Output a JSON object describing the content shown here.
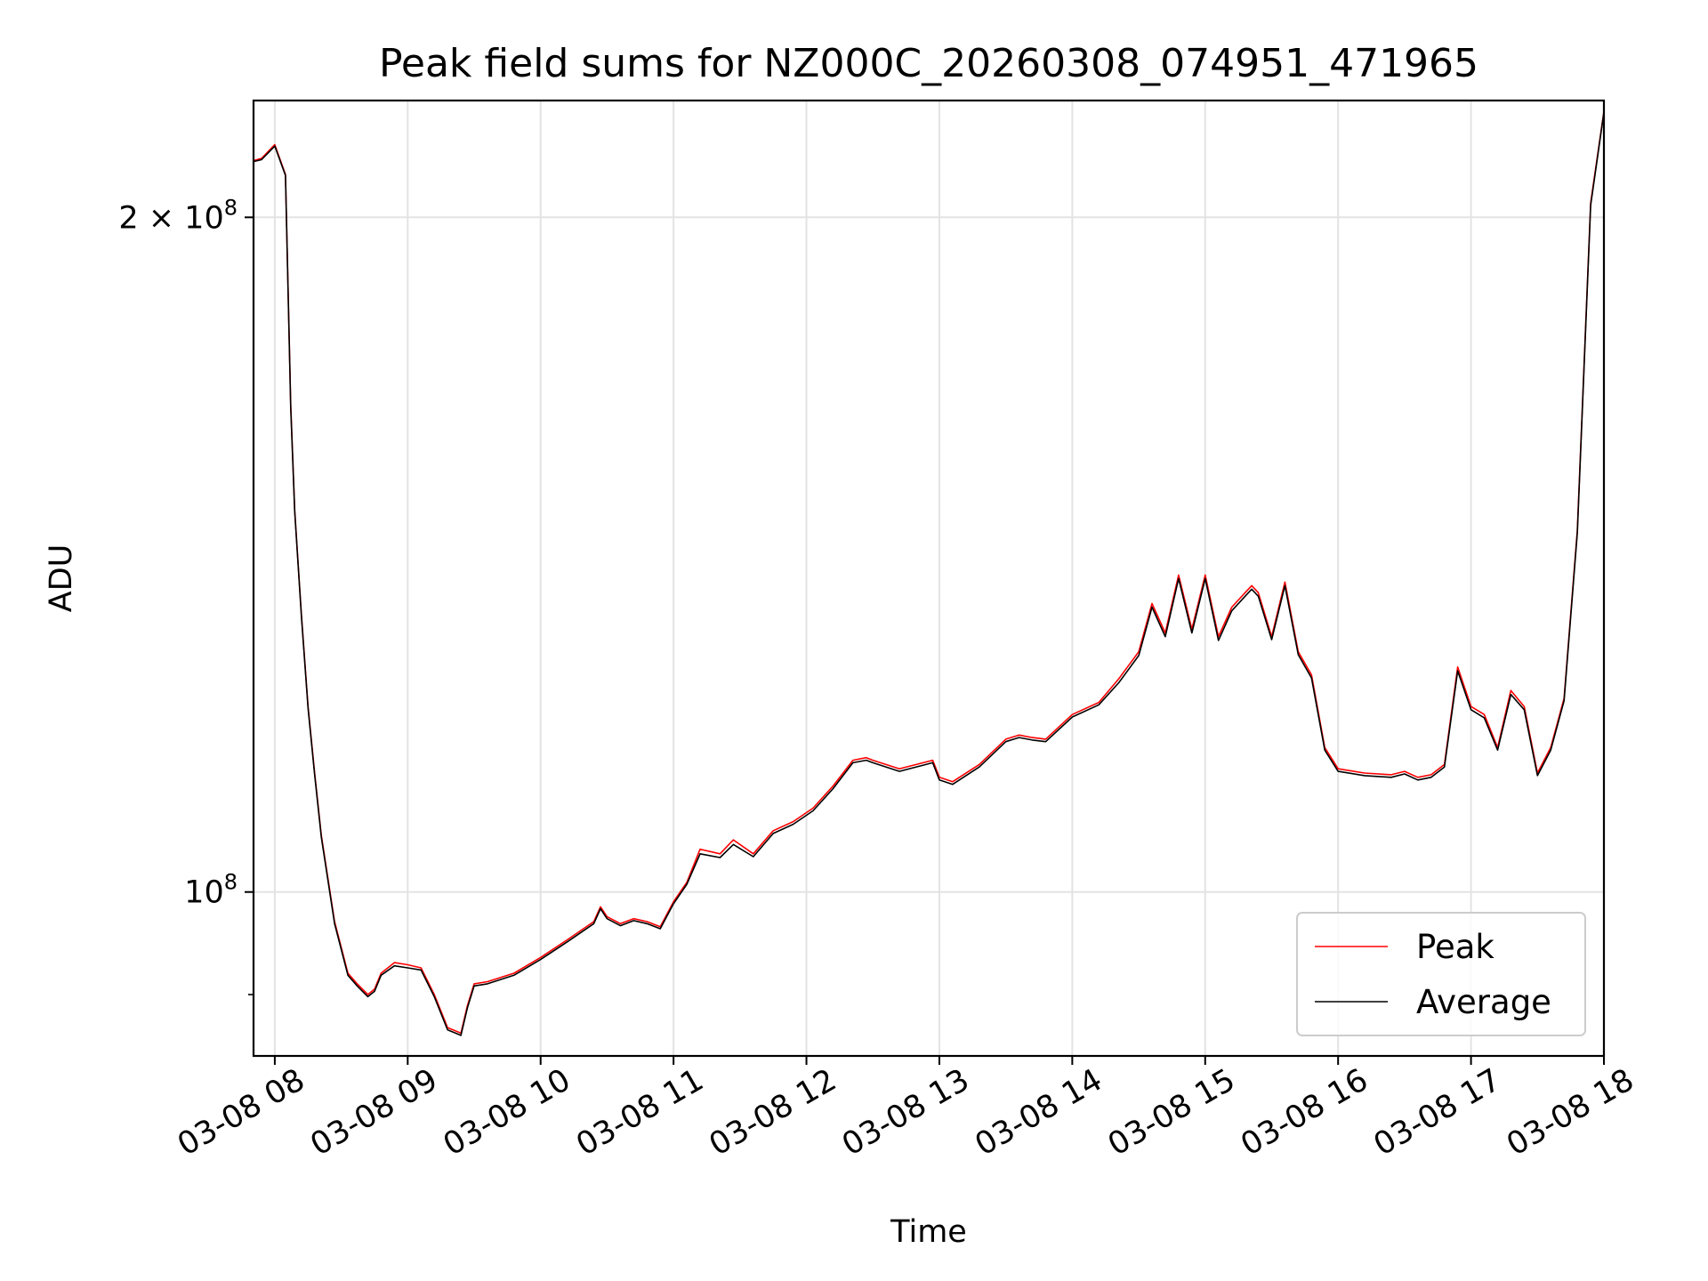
{
  "chart_data": {
    "type": "line",
    "title": "Peak field sums for NZ000C_20260308_074951_471965",
    "xlabel": "Time",
    "ylabel": "ADU",
    "yscale": "log",
    "xlim": [
      7.84,
      18.0
    ],
    "ylim": [
      84500000,
      225500000
    ],
    "grid": true,
    "legend_position": "bottom-right",
    "x_ticks": [
      {
        "value": 8,
        "label": "03-08 08"
      },
      {
        "value": 9,
        "label": "03-08 09"
      },
      {
        "value": 10,
        "label": "03-08 10"
      },
      {
        "value": 11,
        "label": "03-08 11"
      },
      {
        "value": 12,
        "label": "03-08 12"
      },
      {
        "value": 13,
        "label": "03-08 13"
      },
      {
        "value": 14,
        "label": "03-08 14"
      },
      {
        "value": 15,
        "label": "03-08 15"
      },
      {
        "value": 16,
        "label": "03-08 16"
      },
      {
        "value": 17,
        "label": "03-08 17"
      },
      {
        "value": 18,
        "label": "03-08 18"
      }
    ],
    "y_ticks": [
      {
        "value": 100000000,
        "mantissa": "",
        "base": "10",
        "exponent": "8"
      },
      {
        "value": 200000000,
        "mantissa": "2 × ",
        "base": "10",
        "exponent": "8"
      }
    ],
    "series": [
      {
        "name": "Peak",
        "color": "#ff0000",
        "x": [
          7.84,
          7.9,
          8.0,
          8.08,
          8.12,
          8.15,
          8.2,
          8.25,
          8.3,
          8.35,
          8.45,
          8.55,
          8.62,
          8.7,
          8.75,
          8.8,
          8.9,
          9.0,
          9.1,
          9.2,
          9.3,
          9.4,
          9.45,
          9.5,
          9.6,
          9.8,
          10.0,
          10.2,
          10.4,
          10.45,
          10.5,
          10.6,
          10.7,
          10.8,
          10.9,
          11.0,
          11.1,
          11.2,
          11.35,
          11.45,
          11.6,
          11.75,
          11.9,
          12.05,
          12.2,
          12.35,
          12.45,
          12.5,
          12.7,
          12.95,
          13.0,
          13.1,
          13.3,
          13.5,
          13.6,
          13.7,
          13.8,
          14.0,
          14.2,
          14.35,
          14.5,
          14.6,
          14.7,
          14.8,
          14.9,
          15.0,
          15.1,
          15.2,
          15.3,
          15.35,
          15.4,
          15.5,
          15.6,
          15.7,
          15.8,
          15.9,
          16.0,
          16.2,
          16.4,
          16.5,
          16.6,
          16.7,
          16.8,
          16.9,
          17.0,
          17.1,
          17.2,
          17.3,
          17.4,
          17.5,
          17.6,
          17.7,
          17.8,
          17.9,
          18.0
        ],
        "values": [
          212000000,
          212500000,
          215500000,
          209000000,
          165000000,
          148000000,
          133000000,
          121000000,
          113000000,
          106000000,
          97000000,
          92000000,
          91000000,
          90000000,
          90500000,
          92000000,
          93000000,
          92800000,
          92500000,
          90000000,
          87000000,
          86500000,
          89000000,
          91000000,
          91200000,
          92000000,
          93500000,
          95200000,
          97000000,
          98500000,
          97500000,
          96800000,
          97300000,
          97000000,
          96500000,
          99000000,
          101000000,
          104500000,
          104000000,
          105500000,
          104000000,
          106500000,
          107500000,
          109000000,
          111500000,
          114500000,
          114800000,
          114500000,
          113500000,
          114500000,
          112500000,
          112000000,
          114000000,
          117000000,
          117500000,
          117200000,
          117000000,
          120000000,
          121500000,
          124500000,
          128000000,
          134500000,
          130500000,
          138500000,
          131000000,
          138500000,
          130000000,
          134000000,
          136000000,
          137000000,
          136000000,
          130000000,
          137500000,
          128000000,
          125000000,
          116000000,
          113500000,
          113000000,
          112800000,
          113200000,
          112500000,
          112800000,
          114000000,
          126000000,
          121000000,
          120000000,
          116000000,
          123000000,
          121000000,
          113000000,
          116000000,
          122000000,
          145000000,
          203000000,
          223000000
        ]
      },
      {
        "name": "Average",
        "color": "#000000",
        "x": [
          7.84,
          7.9,
          8.0,
          8.08,
          8.12,
          8.15,
          8.2,
          8.25,
          8.3,
          8.35,
          8.45,
          8.55,
          8.62,
          8.7,
          8.75,
          8.8,
          8.9,
          9.0,
          9.1,
          9.2,
          9.3,
          9.4,
          9.45,
          9.5,
          9.6,
          9.8,
          10.0,
          10.2,
          10.4,
          10.45,
          10.5,
          10.6,
          10.7,
          10.8,
          10.9,
          11.0,
          11.1,
          11.2,
          11.35,
          11.45,
          11.6,
          11.75,
          11.9,
          12.05,
          12.2,
          12.35,
          12.45,
          12.5,
          12.7,
          12.95,
          13.0,
          13.1,
          13.3,
          13.5,
          13.6,
          13.7,
          13.8,
          14.0,
          14.2,
          14.35,
          14.5,
          14.6,
          14.7,
          14.8,
          14.9,
          15.0,
          15.1,
          15.2,
          15.3,
          15.35,
          15.4,
          15.5,
          15.6,
          15.7,
          15.8,
          15.9,
          16.0,
          16.2,
          16.4,
          16.5,
          16.6,
          16.7,
          16.8,
          16.9,
          17.0,
          17.1,
          17.2,
          17.3,
          17.4,
          17.5,
          17.6,
          17.7,
          17.8,
          17.9,
          18.0
        ],
        "values": [
          211800000,
          212200000,
          215200000,
          208800000,
          164500000,
          147800000,
          132800000,
          120800000,
          112800000,
          105800000,
          96800000,
          91800000,
          90800000,
          89800000,
          90300000,
          91800000,
          92700000,
          92500000,
          92300000,
          89800000,
          86800000,
          86300000,
          88800000,
          90800000,
          91000000,
          91800000,
          93300000,
          95000000,
          96800000,
          98300000,
          97300000,
          96600000,
          97100000,
          96800000,
          96300000,
          98800000,
          100800000,
          104000000,
          103600000,
          105000000,
          103700000,
          106200000,
          107200000,
          108700000,
          111200000,
          114200000,
          114500000,
          114200000,
          113200000,
          114200000,
          112200000,
          111700000,
          113700000,
          116700000,
          117200000,
          116900000,
          116700000,
          119700000,
          121200000,
          124000000,
          127500000,
          134000000,
          130000000,
          138000000,
          130500000,
          138000000,
          129500000,
          133500000,
          135500000,
          136500000,
          135500000,
          129600000,
          137000000,
          127600000,
          124600000,
          115700000,
          113200000,
          112700000,
          112500000,
          112900000,
          112200000,
          112500000,
          113700000,
          125500000,
          120600000,
          119600000,
          115700000,
          122500000,
          120600000,
          112700000,
          115700000,
          121700000,
          144600000,
          202500000,
          222800000
        ]
      }
    ]
  }
}
